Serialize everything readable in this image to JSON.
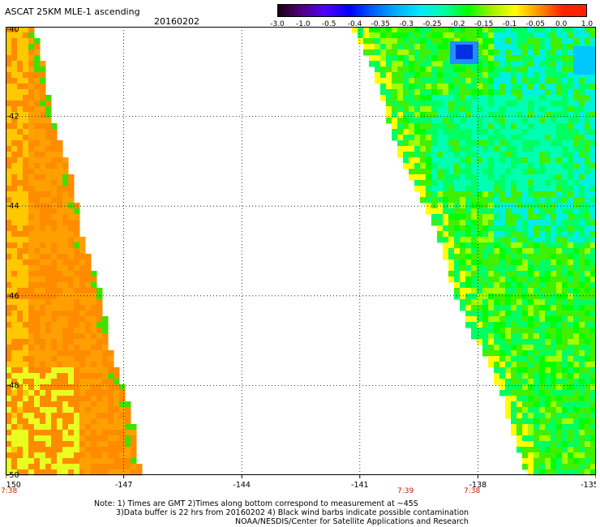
{
  "header": {
    "title": "ASCAT 25KM MLE-1 ascending",
    "date": "20160202"
  },
  "colorbar": {
    "labels": [
      "-3.0",
      "-1.0",
      "-0.5",
      "-0.4",
      "-0.35",
      "-0.3",
      "-0.25",
      "-0.2",
      "-0.15",
      "-0.1",
      "-0.05",
      "0.0",
      "1.0"
    ],
    "colors": [
      "#1a0010",
      "#500080",
      "#5000ff",
      "#0000ff",
      "#0060ff",
      "#00b0ff",
      "#00e8ff",
      "#00ffa0",
      "#00ff00",
      "#a0f000",
      "#ffff00",
      "#ff9000",
      "#ff2000"
    ]
  },
  "map": {
    "lon_range": [
      -150,
      -135
    ],
    "lat_range": [
      -50,
      -40
    ],
    "lon_ticks": [
      "-150",
      "-147",
      "-144",
      "-141",
      "-138",
      "-135"
    ],
    "lat_ticks": [
      "-40",
      "-42",
      "-44",
      "-46",
      "-48",
      "-50"
    ],
    "grid": "dotted",
    "swath_colors": {
      "left_swath": [
        "#ffa000",
        "#ff8c00",
        "#ffc800",
        "#e8ff20",
        "#fff000"
      ],
      "right_swath": [
        "#00ff00",
        "#40f000",
        "#00ff60",
        "#00ffb0",
        "#00f0e0",
        "#a0ff00",
        "#ffff00",
        "#ffa000"
      ]
    }
  },
  "orbit_times": {
    "left": "7:38",
    "middle": "7:39",
    "right": "7:38"
  },
  "notes": {
    "line1": "Note: 1) Times are GMT 2)Times along bottom correspond to measurement at ~45S",
    "line2": "3)Data buffer is 22 hrs from 20160202 4) Black wind barbs indicate possible contamination",
    "line3": "NOAA/NESDIS/Center for Satellite Applications and Research"
  }
}
